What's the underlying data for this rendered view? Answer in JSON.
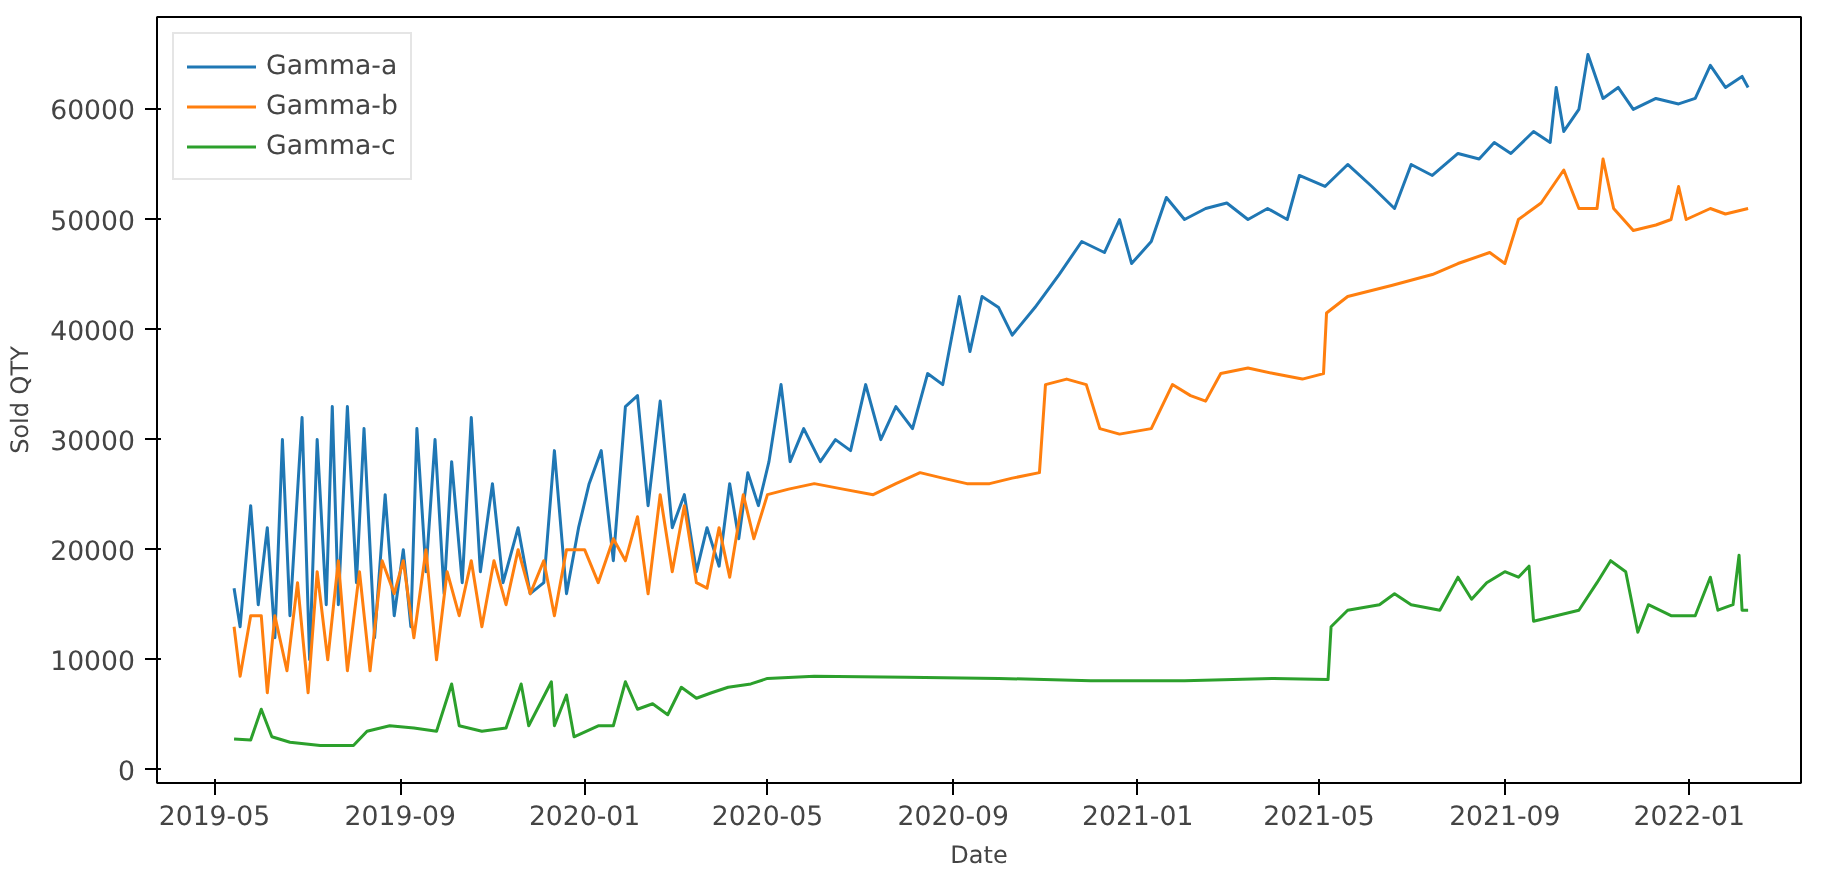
{
  "chart_data": {
    "type": "line",
    "xlabel": "Date",
    "ylabel": "Sold QTY",
    "legend": "top left",
    "grid": false,
    "xlim": [
      "2019-03-24",
      "2022-03-16"
    ],
    "ylim": [
      -1200,
      68400
    ],
    "xticks": [
      "2019-05",
      "2019-09",
      "2020-01",
      "2020-05",
      "2020-09",
      "2021-01",
      "2021-05",
      "2021-09",
      "2022-01"
    ],
    "yticks": [
      0,
      10000,
      20000,
      30000,
      40000,
      50000,
      60000
    ],
    "series": [
      {
        "name": "Gamma-a",
        "color": "#1f77b4",
        "x": [
          "2019-05-14",
          "2019-05-18",
          "2019-05-25",
          "2019-05-30",
          "2019-06-05",
          "2019-06-10",
          "2019-06-15",
          "2019-06-20",
          "2019-06-28",
          "2019-07-03",
          "2019-07-08",
          "2019-07-14",
          "2019-07-18",
          "2019-07-22",
          "2019-07-28",
          "2019-08-03",
          "2019-08-08",
          "2019-08-15",
          "2019-08-22",
          "2019-08-28",
          "2019-09-03",
          "2019-09-08",
          "2019-09-12",
          "2019-09-18",
          "2019-09-24",
          "2019-09-30",
          "2019-10-05",
          "2019-10-12",
          "2019-10-18",
          "2019-10-24",
          "2019-11-01",
          "2019-11-08",
          "2019-11-18",
          "2019-11-26",
          "2019-12-05",
          "2019-12-12",
          "2019-12-20",
          "2019-12-28",
          "2020-01-04",
          "2020-01-12",
          "2020-01-20",
          "2020-01-28",
          "2020-02-05",
          "2020-02-12",
          "2020-02-20",
          "2020-02-28",
          "2020-03-07",
          "2020-03-15",
          "2020-03-22",
          "2020-03-30",
          "2020-04-06",
          "2020-04-12",
          "2020-04-18",
          "2020-04-25",
          "2020-05-02",
          "2020-05-10",
          "2020-05-16",
          "2020-05-25",
          "2020-06-05",
          "2020-06-15",
          "2020-06-25",
          "2020-07-05",
          "2020-07-15",
          "2020-07-25",
          "2020-08-05",
          "2020-08-15",
          "2020-08-25",
          "2020-09-05",
          "2020-09-12",
          "2020-09-20",
          "2020-10-01",
          "2020-10-10",
          "2020-10-25",
          "2020-11-10",
          "2020-11-25",
          "2020-12-10",
          "2020-12-20",
          "2020-12-28",
          "2021-01-10",
          "2021-01-20",
          "2021-02-01",
          "2021-02-15",
          "2021-03-01",
          "2021-03-15",
          "2021-03-28",
          "2021-04-10",
          "2021-04-18",
          "2021-05-05",
          "2021-05-20",
          "2021-06-05",
          "2021-06-20",
          "2021-07-01",
          "2021-07-15",
          "2021-08-01",
          "2021-08-15",
          "2021-08-25",
          "2021-09-05",
          "2021-09-20",
          "2021-10-01",
          "2021-10-05",
          "2021-10-10",
          "2021-10-20",
          "2021-10-26",
          "2021-11-05",
          "2021-11-15",
          "2021-11-25",
          "2021-12-10",
          "2021-12-25",
          "2022-01-05",
          "2022-01-15",
          "2022-01-25",
          "2022-02-05",
          "2022-02-09"
        ],
        "values": [
          16500,
          13000,
          24000,
          15000,
          22000,
          12000,
          30000,
          14000,
          32000,
          10000,
          30000,
          15000,
          33000,
          15000,
          33000,
          17000,
          31000,
          12000,
          25000,
          14000,
          20000,
          13000,
          31000,
          18000,
          30000,
          16000,
          28000,
          17000,
          32000,
          18000,
          26000,
          17000,
          22000,
          16000,
          17000,
          29000,
          16000,
          22000,
          26000,
          29000,
          19000,
          33000,
          34000,
          24000,
          33500,
          22000,
          25000,
          18000,
          22000,
          18500,
          26000,
          21000,
          27000,
          24000,
          28000,
          35000,
          28000,
          31000,
          28000,
          30000,
          29000,
          35000,
          30000,
          33000,
          31000,
          36000,
          35000,
          43000,
          38000,
          43000,
          42000,
          39500,
          42000,
          45000,
          48000,
          47000,
          50000,
          46000,
          48000,
          52000,
          50000,
          51000,
          51500,
          50000,
          51000,
          50000,
          54000,
          53000,
          55000,
          53000,
          51000,
          55000,
          54000,
          56000,
          55500,
          57000,
          56000,
          58000,
          57000,
          62000,
          58000,
          60000,
          65000,
          61000,
          62000,
          60000,
          61000,
          60500,
          61000,
          64000,
          62000,
          63000,
          62000
        ]
      },
      {
        "name": "Gamma-b",
        "color": "#ff7f0e",
        "x": [
          "2019-05-14",
          "2019-05-18",
          "2019-05-25",
          "2019-06-01",
          "2019-06-05",
          "2019-06-10",
          "2019-06-18",
          "2019-06-25",
          "2019-07-02",
          "2019-07-08",
          "2019-07-15",
          "2019-07-22",
          "2019-07-28",
          "2019-08-05",
          "2019-08-12",
          "2019-08-20",
          "2019-08-28",
          "2019-09-03",
          "2019-09-10",
          "2019-09-18",
          "2019-09-25",
          "2019-10-02",
          "2019-10-10",
          "2019-10-18",
          "2019-10-25",
          "2019-11-02",
          "2019-11-10",
          "2019-11-18",
          "2019-11-26",
          "2019-12-05",
          "2019-12-12",
          "2019-12-20",
          "2020-01-01",
          "2020-01-10",
          "2020-01-20",
          "2020-01-28",
          "2020-02-05",
          "2020-02-12",
          "2020-02-20",
          "2020-02-28",
          "2020-03-07",
          "2020-03-15",
          "2020-03-22",
          "2020-03-30",
          "2020-04-06",
          "2020-04-15",
          "2020-04-22",
          "2020-05-01",
          "2020-05-15",
          "2020-06-01",
          "2020-06-20",
          "2020-07-10",
          "2020-07-25",
          "2020-08-10",
          "2020-08-25",
          "2020-09-10",
          "2020-09-25",
          "2020-10-10",
          "2020-10-28",
          "2020-11-01",
          "2020-11-15",
          "2020-11-28",
          "2020-12-07",
          "2020-12-20",
          "2021-01-10",
          "2021-01-24",
          "2021-02-05",
          "2021-02-15",
          "2021-02-25",
          "2021-03-15",
          "2021-04-01",
          "2021-04-20",
          "2021-05-04",
          "2021-05-06",
          "2021-05-20",
          "2021-06-18",
          "2021-07-15",
          "2021-08-01",
          "2021-08-22",
          "2021-09-01",
          "2021-09-10",
          "2021-09-25",
          "2021-10-10",
          "2021-10-20",
          "2021-11-01",
          "2021-11-05",
          "2021-11-12",
          "2021-11-25",
          "2021-12-10",
          "2021-12-20",
          "2021-12-25",
          "2021-12-30",
          "2022-01-15",
          "2022-01-25",
          "2022-02-09"
        ],
        "values": [
          13000,
          8500,
          14000,
          14000,
          7000,
          14000,
          9000,
          17000,
          7000,
          18000,
          10000,
          19000,
          9000,
          18000,
          9000,
          19000,
          16000,
          19000,
          12000,
          20000,
          10000,
          18000,
          14000,
          19000,
          13000,
          19000,
          15000,
          20000,
          16000,
          19000,
          14000,
          20000,
          20000,
          17000,
          21000,
          19000,
          23000,
          16000,
          25000,
          18000,
          24000,
          17000,
          16500,
          22000,
          17500,
          25000,
          21000,
          25000,
          25500,
          26000,
          25500,
          25000,
          26000,
          27000,
          26500,
          26000,
          26000,
          26500,
          27000,
          35000,
          35500,
          35000,
          31000,
          30500,
          31000,
          35000,
          34000,
          33500,
          36000,
          36500,
          36000,
          35500,
          36000,
          41500,
          43000,
          44000,
          45000,
          46000,
          47000,
          46000,
          50000,
          51500,
          54500,
          51000,
          51000,
          55500,
          51000,
          49000,
          49500,
          50000,
          53000,
          50000,
          51000,
          50500,
          51000
        ]
      },
      {
        "name": "Gamma-c",
        "color": "#2ca02c",
        "x": [
          "2019-05-14",
          "2019-05-25",
          "2019-06-01",
          "2019-06-08",
          "2019-06-20",
          "2019-07-10",
          "2019-08-01",
          "2019-08-10",
          "2019-08-25",
          "2019-09-10",
          "2019-09-25",
          "2019-10-05",
          "2019-10-10",
          "2019-10-25",
          "2019-11-10",
          "2019-11-20",
          "2019-11-25",
          "2019-12-10",
          "2019-12-12",
          "2019-12-20",
          "2019-12-25",
          "2020-01-10",
          "2020-01-20",
          "2020-01-28",
          "2020-02-05",
          "2020-02-15",
          "2020-02-25",
          "2020-03-05",
          "2020-03-15",
          "2020-03-25",
          "2020-04-05",
          "2020-04-20",
          "2020-05-01",
          "2020-06-01",
          "2020-08-01",
          "2020-10-01",
          "2020-12-01",
          "2021-02-01",
          "2021-04-01",
          "2021-05-07",
          "2021-05-09",
          "2021-05-20",
          "2021-06-10",
          "2021-06-20",
          "2021-07-01",
          "2021-07-20",
          "2021-08-01",
          "2021-08-10",
          "2021-08-20",
          "2021-09-01",
          "2021-09-10",
          "2021-09-17",
          "2021-09-20",
          "2021-10-05",
          "2021-10-20",
          "2021-11-01",
          "2021-11-10",
          "2021-11-20",
          "2021-11-28",
          "2021-12-05",
          "2021-12-20",
          "2022-01-05",
          "2022-01-15",
          "2022-01-20",
          "2022-01-30",
          "2022-02-03",
          "2022-02-05",
          "2022-02-09"
        ],
        "values": [
          2800,
          2700,
          5500,
          3000,
          2500,
          2200,
          2200,
          3500,
          4000,
          3800,
          3500,
          7800,
          4000,
          3500,
          3800,
          7800,
          4000,
          8000,
          4000,
          6800,
          3000,
          4000,
          4000,
          8000,
          5500,
          6000,
          5000,
          7500,
          6500,
          7000,
          7500,
          7800,
          8300,
          8500,
          8400,
          8300,
          8100,
          8100,
          8300,
          8200,
          13000,
          14500,
          15000,
          16000,
          15000,
          14500,
          17500,
          15500,
          17000,
          18000,
          17500,
          18500,
          13500,
          14000,
          14500,
          17000,
          19000,
          18000,
          12500,
          15000,
          14000,
          14000,
          17500,
          14500,
          15000,
          19500,
          14500,
          14500
        ]
      }
    ]
  }
}
